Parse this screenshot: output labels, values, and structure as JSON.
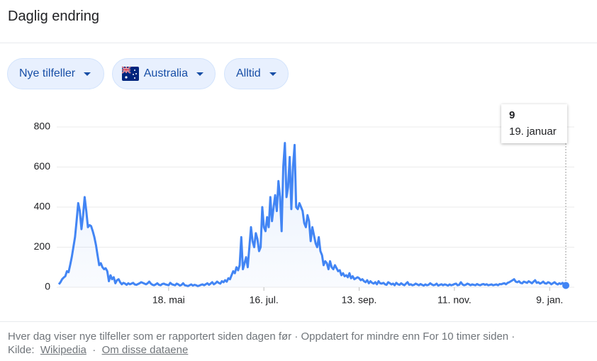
{
  "header": {
    "title": "Daglig endring"
  },
  "filters": [
    "Nye tilfeller",
    "Australia",
    "Alltid"
  ],
  "chart_data": {
    "type": "line",
    "categories": [
      null,
      null,
      null,
      null,
      null,
      null,
      null,
      null,
      null,
      null,
      null,
      null,
      null,
      null,
      null,
      null,
      null,
      null,
      null,
      null,
      null,
      null,
      null,
      null,
      null,
      null,
      null,
      null,
      null,
      null,
      null,
      null,
      null,
      null,
      null,
      null,
      null,
      null,
      null,
      null,
      null,
      null,
      null,
      null,
      null,
      null,
      null,
      null,
      null,
      null,
      null,
      null,
      null,
      null,
      null,
      null,
      null,
      null,
      null,
      null,
      null,
      null,
      null,
      null,
      null,
      null,
      null,
      null,
      "18. mai",
      null,
      null,
      null,
      null,
      null,
      null,
      null,
      null,
      null,
      null,
      null,
      null,
      null,
      null,
      null,
      null,
      null,
      null,
      null,
      null,
      null,
      null,
      null,
      null,
      null,
      null,
      null,
      null,
      null,
      null,
      null,
      null,
      null,
      null,
      null,
      null,
      null,
      null,
      null,
      null,
      null,
      null,
      null,
      null,
      null,
      null,
      null,
      null,
      null,
      null,
      null,
      null,
      null,
      null,
      null,
      null,
      null,
      null,
      "16. jul.",
      null,
      null,
      null,
      null,
      null,
      null,
      null,
      null,
      null,
      null,
      null,
      null,
      null,
      null,
      null,
      null,
      null,
      null,
      null,
      null,
      null,
      null,
      null,
      null,
      null,
      null,
      null,
      null,
      null,
      null,
      null,
      null,
      null,
      null,
      null,
      null,
      null,
      null,
      null,
      null,
      null,
      null,
      null,
      null,
      null,
      null,
      null,
      null,
      null,
      null,
      null,
      null,
      null,
      null,
      null,
      null,
      null,
      null,
      "13. sep.",
      null,
      null,
      null,
      null,
      null,
      null,
      null,
      null,
      null,
      null,
      null,
      null,
      null,
      null,
      null,
      null,
      null,
      null,
      null,
      null,
      null,
      null,
      null,
      null,
      null,
      null,
      null,
      null,
      null,
      null,
      null,
      null,
      null,
      null,
      null,
      null,
      null,
      null,
      null,
      null,
      null,
      null,
      null,
      null,
      null,
      null,
      null,
      null,
      null,
      null,
      null,
      null,
      null,
      null,
      null,
      null,
      null,
      null,
      "11. nov.",
      null,
      null,
      null,
      null,
      null,
      null,
      null,
      null,
      null,
      null,
      null,
      null,
      null,
      null,
      null,
      null,
      null,
      null,
      null,
      null,
      null,
      null,
      null,
      null,
      null,
      null,
      null,
      null,
      null,
      null,
      null,
      null,
      null,
      null,
      null,
      null,
      null,
      null,
      null,
      null,
      null,
      null,
      null,
      null,
      null,
      null,
      null,
      null,
      null,
      null,
      null,
      null,
      null,
      null,
      null,
      null,
      null,
      null,
      "9. jan.",
      null,
      null,
      null,
      null,
      null,
      null,
      null,
      null,
      null,
      null
    ],
    "series": [
      {
        "color": "#4285f4",
        "values": [
          15,
          25,
          40,
          48,
          55,
          80,
          75,
          110,
          150,
          200,
          250,
          330,
          420,
          380,
          290,
          360,
          450,
          380,
          300,
          310,
          305,
          280,
          250,
          210,
          160,
          110,
          120,
          100,
          90,
          95,
          80,
          30,
          60,
          40,
          50,
          20,
          35,
          40,
          25,
          15,
          22,
          18,
          12,
          20,
          15,
          18,
          22,
          14,
          12,
          16,
          20,
          25,
          22,
          18,
          15,
          20,
          28,
          18,
          12,
          10,
          14,
          20,
          12,
          10,
          16,
          18,
          14,
          12,
          10,
          22,
          15,
          12,
          10,
          18,
          14,
          8,
          12,
          20,
          10,
          8,
          6,
          10,
          14,
          8,
          12,
          10,
          6,
          8,
          12,
          14,
          10,
          15,
          20,
          12,
          18,
          25,
          15,
          20,
          28,
          22,
          18,
          30,
          25,
          35,
          28,
          45,
          40,
          60,
          80,
          70,
          100,
          85,
          110,
          250,
          90,
          120,
          150,
          100,
          200,
          300,
          230,
          200,
          270,
          240,
          180,
          200,
          400,
          300,
          280,
          350,
          300,
          450,
          330,
          400,
          460,
          380,
          530,
          450,
          280,
          600,
          720,
          450,
          500,
          650,
          390,
          600,
          710,
          400,
          390,
          420,
          400,
          380,
          320,
          300,
          360,
          330,
          230,
          300,
          260,
          220,
          200,
          250,
          180,
          160,
          110,
          130,
          120,
          90,
          130,
          100,
          90,
          110,
          95,
          80,
          85,
          60,
          70,
          55,
          60,
          50,
          70,
          45,
          55,
          40,
          45,
          50,
          45,
          35,
          40,
          30,
          25,
          35,
          20,
          30,
          22,
          18,
          25,
          15,
          30,
          20,
          18,
          22,
          15,
          12,
          25,
          20,
          14,
          18,
          10,
          22,
          15,
          12,
          20,
          14,
          10,
          18,
          25,
          12,
          15,
          10,
          12,
          18,
          14,
          10,
          16,
          12,
          8,
          14,
          10,
          12,
          20,
          14,
          10,
          12,
          18,
          8,
          12,
          15,
          10,
          14,
          12,
          8,
          14,
          10,
          12,
          16,
          18,
          10,
          12,
          25,
          14,
          10,
          12,
          18,
          15,
          10,
          14,
          12,
          10,
          16,
          12,
          10,
          14,
          16,
          12,
          15,
          10,
          12,
          14,
          10,
          12,
          14,
          10,
          16,
          15,
          18,
          20,
          15,
          22,
          25,
          30,
          35,
          40,
          28,
          25,
          30,
          22,
          20,
          28,
          25,
          22,
          30,
          25,
          20,
          28,
          35,
          22,
          25,
          18,
          22,
          28,
          20,
          18,
          25,
          22,
          15,
          20,
          25,
          18,
          14,
          20,
          16,
          22,
          12,
          9
        ]
      }
    ],
    "ylim": [
      0,
      800
    ],
    "yticks": [
      0,
      200,
      400,
      600,
      800
    ],
    "grid": true,
    "tooltip_label": "19. januar"
  },
  "footer": {
    "note": "Hver dag viser nye tilfeller som er rapportert siden dagen før · Oppdatert for mindre enn For 10 timer siden ·",
    "source_label": "Kilde:",
    "source_link": "Wikipedia",
    "separator": "·",
    "about_link": "Om disse dataene"
  }
}
